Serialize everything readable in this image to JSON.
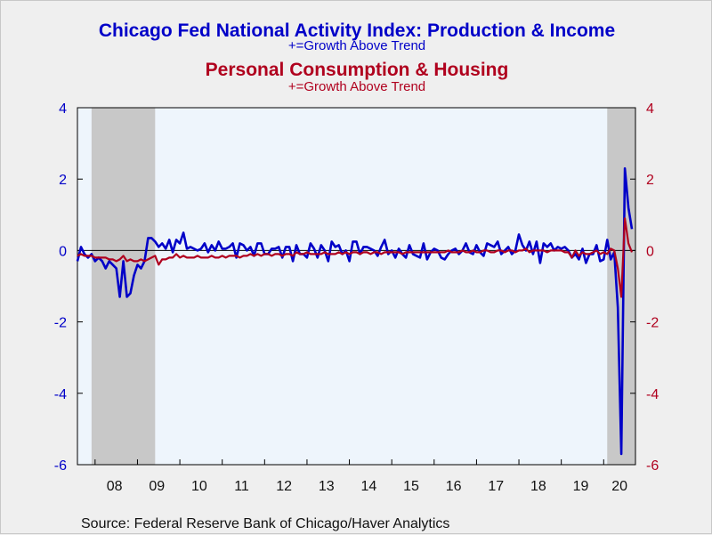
{
  "chart_data": {
    "type": "line",
    "title_line1": "Chicago Fed National Activity Index: Production & Income",
    "subtitle_line1": "+=Growth Above Trend",
    "title_line2": "Personal Consumption & Housing",
    "subtitle_line2": "+=Growth Above Trend",
    "source": "Source:  Federal Reserve Bank of Chicago/Haver Analytics",
    "x_tick_labels": [
      "08",
      "09",
      "10",
      "11",
      "12",
      "13",
      "14",
      "15",
      "16",
      "17",
      "18",
      "19",
      "20"
    ],
    "x_range": [
      "2007-08",
      "2020-10"
    ],
    "y_left": {
      "min": -6,
      "max": 4,
      "ticks": [
        4,
        2,
        0,
        -2,
        -4,
        -6
      ]
    },
    "y_right": {
      "min": -6,
      "max": 4,
      "ticks": [
        4,
        2,
        0,
        -2,
        -4,
        -6
      ]
    },
    "recessions": [
      [
        "2007-12",
        "2009-06"
      ],
      [
        "2020-02",
        "2020-10"
      ]
    ],
    "grid": false,
    "zero_line": true,
    "colors": {
      "production_income": "#0000c8",
      "consumption_housing": "#b0001e",
      "recession_shade": "#c8c8c8",
      "plot_background": "#eef5fc"
    },
    "series": [
      {
        "color_key": "production_income",
        "axis": "left",
        "start": "2007-08",
        "values": [
          -0.3,
          0.1,
          -0.1,
          -0.2,
          -0.1,
          -0.3,
          -0.2,
          -0.3,
          -0.5,
          -0.3,
          -0.4,
          -0.5,
          -1.3,
          -0.3,
          -1.3,
          -1.2,
          -0.7,
          -0.4,
          -0.5,
          -0.3,
          0.35,
          0.35,
          0.25,
          0.1,
          0.2,
          0.05,
          0.3,
          -0.05,
          0.3,
          0.2,
          0.5,
          0.05,
          0.1,
          0.05,
          0.0,
          0.05,
          0.2,
          -0.05,
          0.15,
          0.0,
          0.25,
          0.05,
          0.05,
          0.1,
          0.2,
          -0.2,
          0.2,
          0.15,
          0.0,
          0.1,
          -0.15,
          0.2,
          0.2,
          -0.1,
          -0.1,
          0.05,
          0.05,
          0.1,
          -0.2,
          0.1,
          0.1,
          -0.3,
          0.15,
          -0.1,
          -0.1,
          -0.2,
          0.2,
          0.05,
          -0.2,
          0.15,
          0.0,
          -0.3,
          0.25,
          0.1,
          0.15,
          -0.1,
          0.0,
          -0.3,
          0.25,
          0.25,
          -0.1,
          0.1,
          0.1,
          0.05,
          0.0,
          -0.15,
          0.1,
          0.3,
          -0.1,
          0.0,
          -0.2,
          0.05,
          -0.1,
          -0.2,
          0.15,
          -0.1,
          -0.15,
          -0.2,
          0.2,
          -0.25,
          -0.05,
          0.05,
          0.0,
          -0.2,
          -0.25,
          -0.1,
          0.0,
          0.05,
          -0.1,
          0.0,
          0.2,
          -0.05,
          -0.1,
          0.15,
          -0.05,
          -0.15,
          0.2,
          0.15,
          0.1,
          0.25,
          -0.1,
          0.0,
          0.1,
          -0.1,
          0.0,
          0.45,
          0.15,
          0.0,
          0.25,
          -0.1,
          0.25,
          -0.35,
          0.2,
          0.1,
          0.2,
          0.0,
          0.1,
          0.05,
          0.1,
          0.0,
          -0.2,
          -0.1,
          -0.25,
          0.05,
          -0.35,
          -0.1,
          -0.1,
          0.15,
          -0.3,
          -0.25,
          0.3,
          -0.25,
          -0.05,
          -1.6,
          -5.7,
          2.3,
          1.2,
          0.6
        ]
      },
      {
        "color_key": "consumption_housing",
        "axis": "right",
        "start": "2007-08",
        "values": [
          -0.15,
          -0.1,
          -0.15,
          -0.15,
          -0.15,
          -0.2,
          -0.2,
          -0.2,
          -0.2,
          -0.25,
          -0.25,
          -0.3,
          -0.25,
          -0.15,
          -0.3,
          -0.25,
          -0.3,
          -0.3,
          -0.25,
          -0.3,
          -0.25,
          -0.2,
          -0.15,
          -0.4,
          -0.25,
          -0.25,
          -0.2,
          -0.2,
          -0.1,
          -0.2,
          -0.15,
          -0.2,
          -0.2,
          -0.2,
          -0.15,
          -0.2,
          -0.2,
          -0.2,
          -0.15,
          -0.2,
          -0.2,
          -0.15,
          -0.2,
          -0.15,
          -0.15,
          -0.15,
          -0.2,
          -0.15,
          -0.15,
          -0.1,
          -0.15,
          -0.1,
          -0.15,
          -0.1,
          -0.1,
          -0.15,
          -0.1,
          -0.1,
          -0.15,
          -0.1,
          -0.1,
          -0.15,
          -0.05,
          -0.1,
          -0.1,
          -0.05,
          -0.1,
          -0.1,
          -0.1,
          -0.1,
          -0.05,
          -0.1,
          -0.1,
          -0.1,
          -0.05,
          -0.1,
          -0.05,
          -0.1,
          -0.05,
          -0.05,
          -0.1,
          -0.05,
          -0.05,
          -0.1,
          -0.05,
          -0.05,
          -0.1,
          -0.05,
          -0.05,
          -0.05,
          -0.05,
          -0.05,
          -0.1,
          -0.05,
          -0.05,
          -0.05,
          -0.05,
          -0.05,
          -0.05,
          -0.05,
          -0.05,
          -0.05,
          -0.05,
          -0.05,
          -0.05,
          0.0,
          -0.05,
          -0.05,
          -0.05,
          0.0,
          -0.05,
          -0.05,
          0.0,
          -0.05,
          -0.05,
          0.0,
          0.0,
          -0.05,
          -0.05,
          0.0,
          0.0,
          -0.05,
          0.0,
          0.0,
          -0.05,
          0.0,
          0.0,
          0.05,
          -0.05,
          0.0,
          0.0,
          0.0,
          0.0,
          -0.05,
          0.0,
          0.0,
          0.0,
          0.0,
          -0.05,
          -0.05,
          -0.2,
          0.0,
          -0.15,
          -0.05,
          -0.1,
          -0.1,
          -0.05,
          0.0,
          -0.1,
          -0.05,
          -0.1,
          0.05,
          0.0,
          -0.5,
          -1.3,
          0.9,
          0.2,
          -0.05
        ]
      }
    ]
  }
}
